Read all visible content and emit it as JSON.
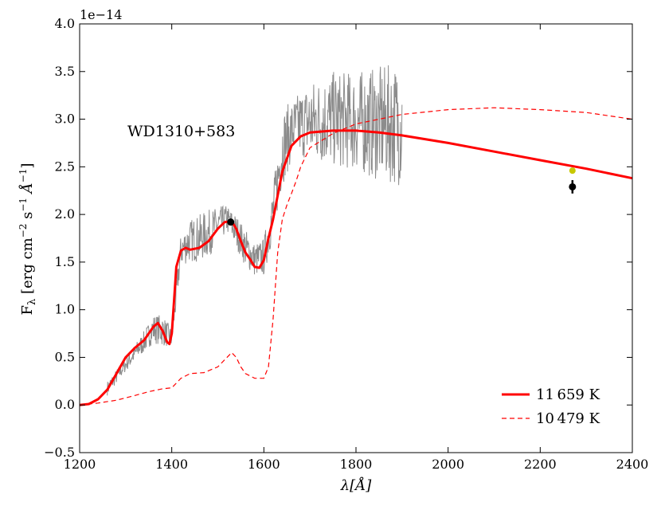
{
  "chart_data": {
    "type": "line",
    "title": "",
    "annotation": "WD1310+583",
    "offset_text": "1e−14",
    "xlabel_main": "λ[",
    "xlabel_unit": "Å",
    "xlabel_close": "]",
    "ylabel_prefix": "F",
    "ylabel_sub": "λ",
    "ylabel_main": " [erg cm",
    "ylabel_e1": "−2",
    "ylabel_s": " s",
    "ylabel_e2": "−1",
    "ylabel_A": " Å",
    "ylabel_e3": "−1",
    "ylabel_close": "]",
    "xlim": [
      1200,
      2400
    ],
    "ylim": [
      -0.5,
      4.0
    ],
    "xticks": [
      1200,
      1400,
      1600,
      1800,
      2000,
      2200,
      2400
    ],
    "yticks": [
      "−0.5",
      "0.0",
      "0.5",
      "1.0",
      "1.5",
      "2.0",
      "2.5",
      "3.0",
      "3.5",
      "4.0"
    ],
    "ytick_values": [
      -0.5,
      0.0,
      0.5,
      1.0,
      1.5,
      2.0,
      2.5,
      3.0,
      3.5,
      4.0
    ],
    "colors": {
      "model": "#ff0000",
      "spectrum": "#8c8c8c",
      "photometry": "#000000",
      "synthetic": "#c8c800"
    },
    "legend": {
      "position": "bottom-right",
      "entries": [
        {
          "label": "11 659 K",
          "style": "solid"
        },
        {
          "label": "10 479 K",
          "style": "dashed"
        }
      ]
    },
    "series": [
      {
        "name": "11 659 K",
        "style": "solid",
        "x": [
          1200,
          1220,
          1240,
          1260,
          1280,
          1300,
          1320,
          1340,
          1360,
          1370,
          1380,
          1390,
          1395,
          1400,
          1405,
          1410,
          1420,
          1430,
          1440,
          1460,
          1480,
          1500,
          1515,
          1530,
          1540,
          1550,
          1560,
          1570,
          1580,
          1590,
          1600,
          1610,
          1620,
          1630,
          1640,
          1660,
          1680,
          1700,
          1750,
          1800,
          1850,
          1900,
          2000,
          2100,
          2200,
          2300,
          2400
        ],
        "y": [
          0.0,
          0.01,
          0.06,
          0.16,
          0.33,
          0.5,
          0.6,
          0.68,
          0.82,
          0.86,
          0.78,
          0.66,
          0.64,
          0.75,
          1.1,
          1.45,
          1.62,
          1.65,
          1.63,
          1.65,
          1.72,
          1.85,
          1.92,
          1.93,
          1.85,
          1.72,
          1.6,
          1.53,
          1.45,
          1.44,
          1.52,
          1.75,
          1.95,
          2.2,
          2.45,
          2.72,
          2.82,
          2.86,
          2.88,
          2.88,
          2.86,
          2.83,
          2.75,
          2.66,
          2.57,
          2.48,
          2.38
        ]
      },
      {
        "name": "10 479 K",
        "style": "dashed",
        "x": [
          1200,
          1240,
          1280,
          1320,
          1350,
          1380,
          1400,
          1420,
          1440,
          1470,
          1500,
          1520,
          1530,
          1540,
          1550,
          1560,
          1580,
          1600,
          1610,
          1620,
          1630,
          1640,
          1650,
          1660,
          1670,
          1680,
          1700,
          1750,
          1800,
          1850,
          1900,
          2000,
          2100,
          2200,
          2300,
          2400
        ],
        "y": [
          0.0,
          0.02,
          0.05,
          0.1,
          0.14,
          0.17,
          0.18,
          0.28,
          0.33,
          0.34,
          0.4,
          0.5,
          0.55,
          0.5,
          0.4,
          0.33,
          0.28,
          0.28,
          0.4,
          0.9,
          1.6,
          1.95,
          2.1,
          2.22,
          2.35,
          2.5,
          2.7,
          2.85,
          2.95,
          3.0,
          3.05,
          3.1,
          3.12,
          3.1,
          3.07,
          3.0
        ]
      }
    ],
    "spectrum_envelope": {
      "x": [
        1260,
        1300,
        1340,
        1360,
        1380,
        1400,
        1420,
        1440,
        1460,
        1480,
        1500,
        1520,
        1540,
        1560,
        1580,
        1600,
        1620,
        1640,
        1660,
        1680,
        1700,
        1750,
        1800,
        1850,
        1900
      ],
      "low": [
        0.1,
        0.35,
        0.55,
        0.65,
        0.62,
        0.6,
        1.45,
        1.5,
        1.5,
        1.55,
        1.7,
        1.8,
        1.65,
        1.45,
        1.35,
        1.35,
        1.75,
        2.3,
        2.55,
        2.6,
        2.55,
        2.5,
        2.45,
        2.35,
        2.3
      ],
      "high": [
        0.25,
        0.5,
        0.78,
        0.95,
        0.95,
        0.8,
        1.8,
        1.95,
        2.0,
        2.05,
        2.08,
        2.1,
        2.0,
        1.85,
        1.7,
        1.75,
        2.3,
        3.1,
        3.2,
        3.3,
        3.4,
        3.5,
        3.5,
        3.55,
        3.6
      ]
    },
    "points": [
      {
        "name": "photometry-fuv",
        "x": 1528,
        "y": 1.92,
        "err": 0.0,
        "color": "#000000"
      },
      {
        "name": "photometry-nuv",
        "x": 2270,
        "y": 2.29,
        "err": 0.07,
        "color": "#000000"
      },
      {
        "name": "synthetic-nuv",
        "x": 2270,
        "y": 2.46,
        "err": 0.0,
        "color": "#c8c800"
      }
    ]
  }
}
